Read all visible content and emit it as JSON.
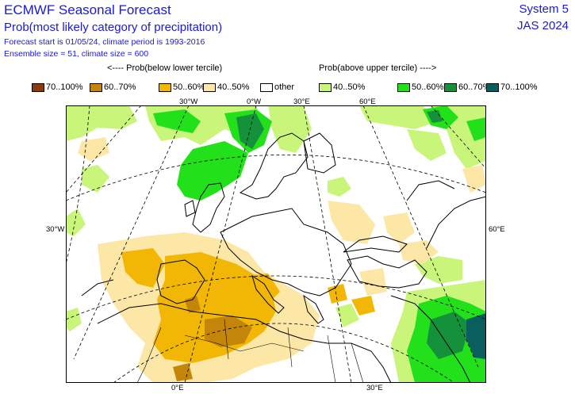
{
  "header": {
    "title": "ECMWF Seasonal Forecast",
    "subtitle": "Prob(most likely category of precipitation)",
    "meta_line1": "Forecast start is 01/05/24, climate period is 1993-2016",
    "meta_line2": "Ensemble size = 51, climate size = 600",
    "system": "System 5",
    "season": "JAS 2024"
  },
  "legend": {
    "below_caption": "<---- Prob(below lower tercile)",
    "above_caption": "Prob(above upper tercile) ---->",
    "items": [
      {
        "label": "70..100%",
        "color": "#8b3a0e"
      },
      {
        "label": "60..70%",
        "color": "#c4860a"
      },
      {
        "label": "50..60%",
        "color": "#f2b705"
      },
      {
        "label": "40..50%",
        "color": "#fde7a6"
      },
      {
        "label": "other",
        "color": "#ffffff"
      },
      {
        "label": "40..50%",
        "color": "#c8f57a"
      },
      {
        "label": "50..60%",
        "color": "#22e01a"
      },
      {
        "label": "60..70%",
        "color": "#14913a"
      },
      {
        "label": "70..100%",
        "color": "#0b5e5e"
      }
    ]
  },
  "map": {
    "axis_labels": {
      "top_30w": "30°W",
      "top_0w": "0°W",
      "top_30e": "30°E",
      "top_60e": "60°E",
      "left_30w": "30°W",
      "right_60e": "60°E",
      "bottom_0e": "0°E",
      "bottom_30e": "30°E"
    }
  }
}
